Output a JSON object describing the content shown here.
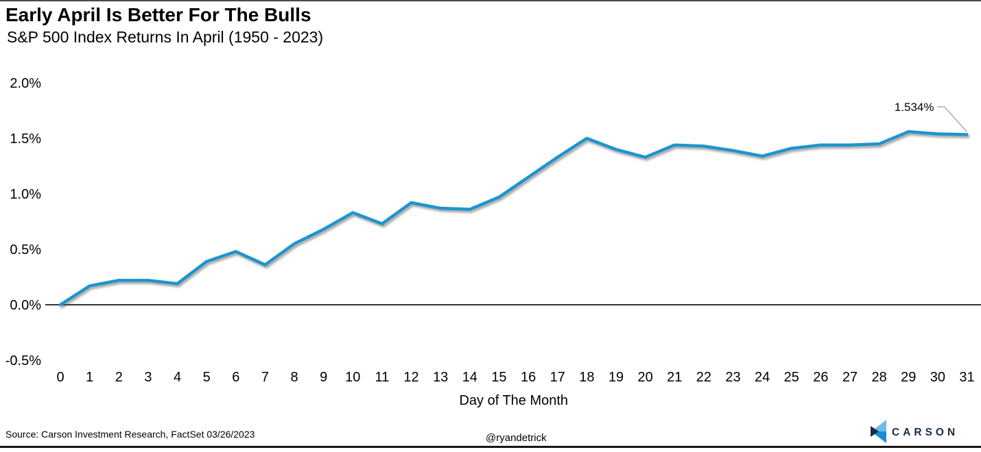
{
  "header": {
    "title": "Early April Is Better For The Bulls",
    "subtitle": "S&P 500 Index Returns In April (1950 - 2023)"
  },
  "chart_data": {
    "type": "line",
    "title": "Early April Is Better For The Bulls",
    "subtitle": "S&P 500 Index Returns In April (1950 - 2023)",
    "xlabel": "Day of The Month",
    "ylabel": "",
    "x": [
      0,
      1,
      2,
      3,
      4,
      5,
      6,
      7,
      8,
      9,
      10,
      11,
      12,
      13,
      14,
      15,
      16,
      17,
      18,
      19,
      20,
      21,
      22,
      23,
      24,
      25,
      26,
      27,
      28,
      29,
      30,
      31
    ],
    "values": [
      0.0,
      0.17,
      0.22,
      0.22,
      0.19,
      0.39,
      0.48,
      0.36,
      0.55,
      0.68,
      0.83,
      0.73,
      0.92,
      0.87,
      0.86,
      0.97,
      1.15,
      1.33,
      1.5,
      1.4,
      1.33,
      1.44,
      1.43,
      1.39,
      1.34,
      1.41,
      1.44,
      1.44,
      1.45,
      1.56,
      1.54,
      1.534
    ],
    "y_ticks": [
      {
        "value": 2.0,
        "label": "2.0%"
      },
      {
        "value": 1.5,
        "label": "1.5%"
      },
      {
        "value": 1.0,
        "label": "1.0%"
      },
      {
        "value": 0.5,
        "label": "0.5%"
      },
      {
        "value": 0.0,
        "label": "0.0%"
      },
      {
        "value": -0.5,
        "label": "-0.5%"
      }
    ],
    "ylim": [
      -0.5,
      2.0
    ],
    "xlim": [
      0,
      31
    ],
    "grid": false,
    "legend": "none",
    "line_color": "#1F95CE",
    "annotation": {
      "text": "1.534%",
      "x": 31,
      "y": 1.534
    }
  },
  "footer": {
    "source": "Source: Carson Investment Research, FactSet 03/26/2023",
    "handle": "@ryandetrick",
    "logo_text": "CARSON"
  },
  "colors": {
    "line": "#1F95CE",
    "axis": "#1a1a1a",
    "leader_gray": "#999999",
    "logo_navy": "#1B2B4C",
    "logo_light_blue": "#6FBCEC",
    "logo_mid_blue": "#1D8BD8"
  }
}
